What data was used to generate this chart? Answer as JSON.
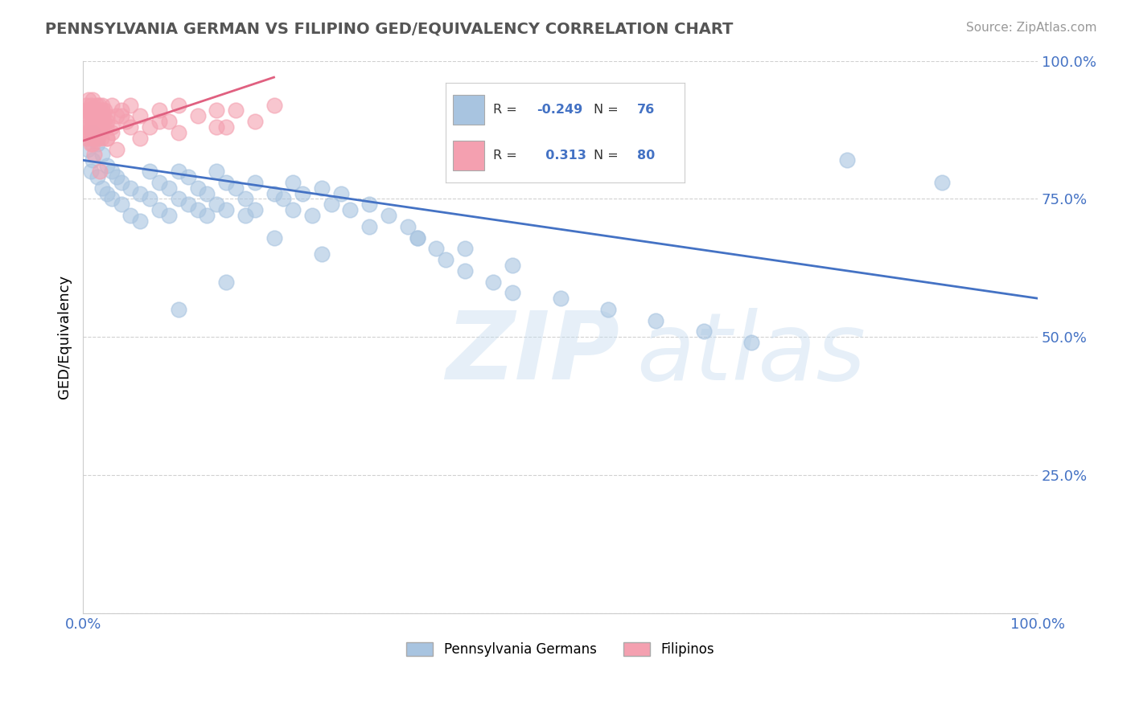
{
  "title": "PENNSYLVANIA GERMAN VS FILIPINO GED/EQUIVALENCY CORRELATION CHART",
  "source": "Source: ZipAtlas.com",
  "ylabel": "GED/Equivalency",
  "xlim": [
    0,
    1
  ],
  "ylim": [
    0,
    1
  ],
  "xticks": [
    0.0,
    0.25,
    0.5,
    0.75,
    1.0
  ],
  "xticklabels": [
    "0.0%",
    "",
    "",
    "",
    "100.0%"
  ],
  "yticks": [
    0.0,
    0.25,
    0.5,
    0.75,
    1.0
  ],
  "yticklabels": [
    "",
    "25.0%",
    "50.0%",
    "75.0%",
    "100.0%"
  ],
  "legend_r_blue": "-0.249",
  "legend_n_blue": "76",
  "legend_r_pink": "0.313",
  "legend_n_pink": "80",
  "blue_color": "#a8c4e0",
  "pink_color": "#f4a0b0",
  "blue_line_color": "#4472c4",
  "pink_line_color": "#e06080",
  "blue_trendline_x": [
    0.0,
    1.0
  ],
  "blue_trendline_y": [
    0.82,
    0.57
  ],
  "pink_trendline_x": [
    0.0,
    0.2
  ],
  "pink_trendline_y": [
    0.855,
    0.97
  ],
  "grid_color": "#cccccc",
  "background_color": "#ffffff",
  "tick_color": "#4472c4",
  "blue_scatter_x": [
    0.005,
    0.008,
    0.01,
    0.01,
    0.015,
    0.015,
    0.02,
    0.02,
    0.025,
    0.025,
    0.03,
    0.03,
    0.035,
    0.04,
    0.04,
    0.05,
    0.05,
    0.06,
    0.06,
    0.07,
    0.07,
    0.08,
    0.08,
    0.09,
    0.09,
    0.1,
    0.1,
    0.11,
    0.11,
    0.12,
    0.12,
    0.13,
    0.13,
    0.14,
    0.14,
    0.15,
    0.15,
    0.16,
    0.17,
    0.17,
    0.18,
    0.18,
    0.2,
    0.21,
    0.22,
    0.22,
    0.23,
    0.24,
    0.25,
    0.26,
    0.27,
    0.28,
    0.3,
    0.32,
    0.34,
    0.35,
    0.37,
    0.38,
    0.4,
    0.43,
    0.45,
    0.5,
    0.55,
    0.6,
    0.65,
    0.7,
    0.8,
    0.9,
    0.2,
    0.15,
    0.25,
    0.1,
    0.3,
    0.35,
    0.4,
    0.45
  ],
  "blue_scatter_y": [
    0.84,
    0.8,
    0.87,
    0.82,
    0.85,
    0.79,
    0.83,
    0.77,
    0.81,
    0.76,
    0.8,
    0.75,
    0.79,
    0.78,
    0.74,
    0.77,
    0.72,
    0.76,
    0.71,
    0.8,
    0.75,
    0.78,
    0.73,
    0.77,
    0.72,
    0.8,
    0.75,
    0.79,
    0.74,
    0.77,
    0.73,
    0.76,
    0.72,
    0.8,
    0.74,
    0.78,
    0.73,
    0.77,
    0.75,
    0.72,
    0.78,
    0.73,
    0.76,
    0.75,
    0.78,
    0.73,
    0.76,
    0.72,
    0.77,
    0.74,
    0.76,
    0.73,
    0.74,
    0.72,
    0.7,
    0.68,
    0.66,
    0.64,
    0.62,
    0.6,
    0.58,
    0.57,
    0.55,
    0.53,
    0.51,
    0.49,
    0.82,
    0.78,
    0.68,
    0.6,
    0.65,
    0.55,
    0.7,
    0.68,
    0.66,
    0.63
  ],
  "pink_scatter_x": [
    0.003,
    0.003,
    0.004,
    0.004,
    0.005,
    0.005,
    0.006,
    0.006,
    0.007,
    0.007,
    0.008,
    0.008,
    0.009,
    0.009,
    0.01,
    0.01,
    0.01,
    0.01,
    0.011,
    0.011,
    0.012,
    0.012,
    0.013,
    0.013,
    0.014,
    0.014,
    0.015,
    0.015,
    0.016,
    0.016,
    0.017,
    0.017,
    0.018,
    0.018,
    0.019,
    0.019,
    0.02,
    0.02,
    0.021,
    0.022,
    0.023,
    0.024,
    0.025,
    0.025,
    0.03,
    0.03,
    0.035,
    0.04,
    0.045,
    0.05,
    0.06,
    0.07,
    0.08,
    0.09,
    0.1,
    0.12,
    0.14,
    0.16,
    0.007,
    0.008,
    0.009,
    0.01,
    0.015,
    0.02,
    0.025,
    0.03,
    0.04,
    0.05,
    0.06,
    0.08,
    0.1,
    0.14,
    0.18,
    0.2,
    0.15,
    0.008,
    0.012,
    0.018,
    0.025,
    0.035
  ],
  "pink_scatter_y": [
    0.88,
    0.92,
    0.9,
    0.86,
    0.91,
    0.87,
    0.93,
    0.89,
    0.91,
    0.87,
    0.92,
    0.88,
    0.9,
    0.86,
    0.93,
    0.89,
    0.85,
    0.91,
    0.89,
    0.87,
    0.91,
    0.88,
    0.9,
    0.86,
    0.92,
    0.88,
    0.91,
    0.87,
    0.9,
    0.86,
    0.92,
    0.88,
    0.91,
    0.87,
    0.9,
    0.86,
    0.92,
    0.88,
    0.9,
    0.89,
    0.91,
    0.88,
    0.9,
    0.86,
    0.92,
    0.88,
    0.9,
    0.91,
    0.89,
    0.92,
    0.9,
    0.88,
    0.91,
    0.89,
    0.92,
    0.9,
    0.88,
    0.91,
    0.87,
    0.9,
    0.88,
    0.86,
    0.89,
    0.91,
    0.89,
    0.87,
    0.9,
    0.88,
    0.86,
    0.89,
    0.87,
    0.91,
    0.89,
    0.92,
    0.88,
    0.85,
    0.83,
    0.8,
    0.86,
    0.84
  ]
}
